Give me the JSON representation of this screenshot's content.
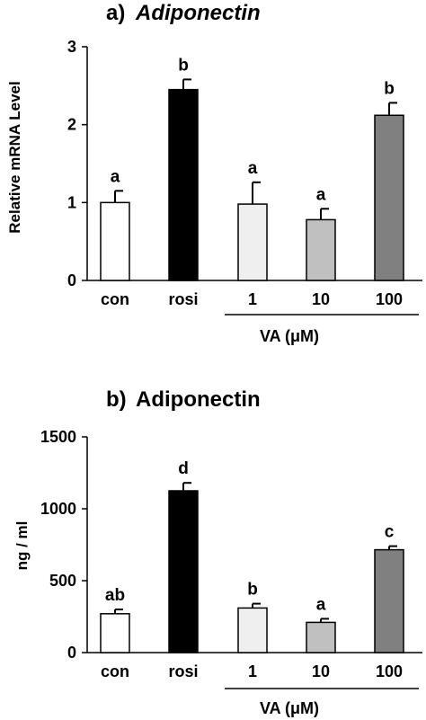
{
  "chart_data": [
    {
      "type": "bar",
      "title_prefix": "a)",
      "title": "Adiponectin",
      "ylabel": "Relative mRNA Level",
      "ylim": [
        0,
        3
      ],
      "yticks": [
        "0",
        "1",
        "2",
        "3"
      ],
      "categories": [
        "con",
        "rosi",
        "1",
        "10",
        "100"
      ],
      "values": [
        1.0,
        2.45,
        0.98,
        0.78,
        2.12
      ],
      "errors": [
        0.15,
        0.13,
        0.28,
        0.14,
        0.16
      ],
      "letters": [
        "a",
        "b",
        "a",
        "a",
        "b"
      ],
      "colors": [
        "#ffffff",
        "#000000",
        "#efefef",
        "#c0c0c0",
        "#808080"
      ],
      "group_label": "VA (μM)"
    },
    {
      "type": "bar",
      "title_prefix": "b)",
      "title": "Adiponectin",
      "ylabel": "ng / ml",
      "ylim": [
        0,
        1500
      ],
      "yticks": [
        "0",
        "500",
        "1000",
        "1500"
      ],
      "categories": [
        "con",
        "rosi",
        "1",
        "10",
        "100"
      ],
      "values": [
        270,
        1125,
        310,
        210,
        715
      ],
      "errors": [
        30,
        55,
        30,
        25,
        25
      ],
      "letters": [
        "ab",
        "d",
        "b",
        "a",
        "c"
      ],
      "colors": [
        "#ffffff",
        "#000000",
        "#efefef",
        "#c0c0c0",
        "#808080"
      ],
      "group_label": "VA (μM)"
    }
  ]
}
